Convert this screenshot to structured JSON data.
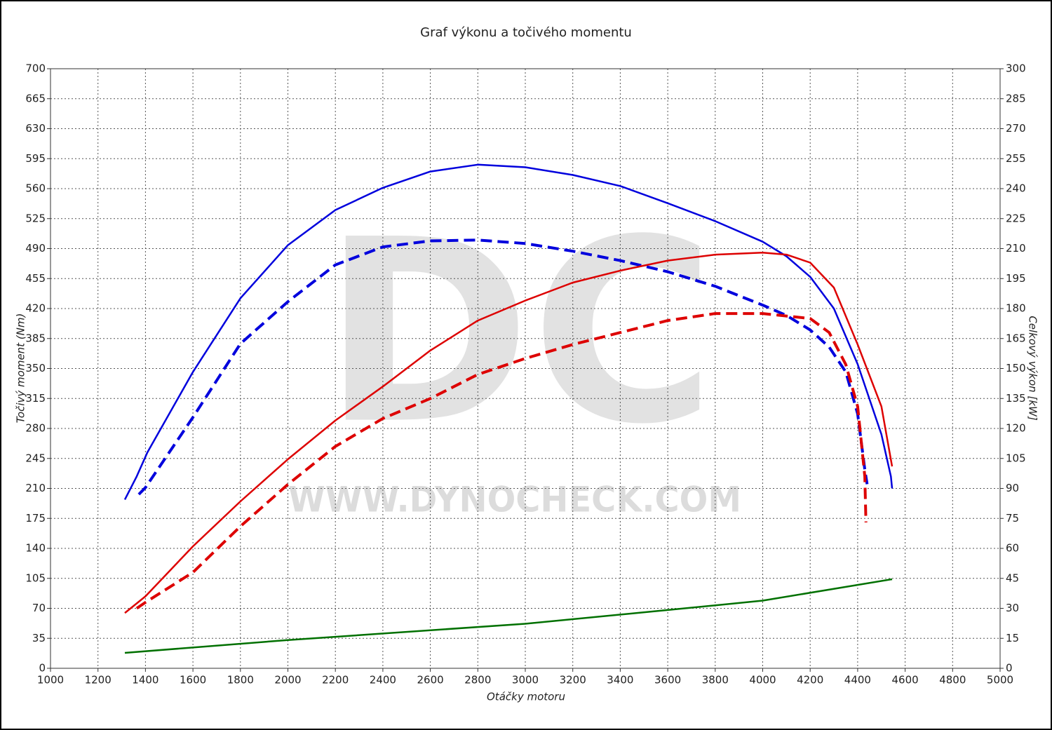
{
  "chart_data": {
    "type": "line",
    "title": "Graf výkonu a točivého momentu",
    "watermark": "DC",
    "watermark_url": "WWW.DYNOCHECK.COM",
    "x_label": "Otáčky motoru",
    "y_label": "Točivý moment (Nm)",
    "y2_label": "Celkový výkon [kW]",
    "xlim": [
      1000,
      5000
    ],
    "xticks": [
      1000,
      1200,
      1400,
      1600,
      1800,
      2000,
      2200,
      2400,
      2600,
      2800,
      3000,
      3200,
      3400,
      3600,
      3800,
      4000,
      4200,
      4400,
      4600,
      4800,
      5000
    ],
    "ylim": [
      0,
      700
    ],
    "yticks": [
      0,
      35,
      70,
      105,
      140,
      175,
      210,
      245,
      280,
      315,
      350,
      385,
      420,
      455,
      490,
      525,
      560,
      595,
      630,
      665,
      700
    ],
    "y2lim": [
      0,
      300
    ],
    "y2ticks": [
      0,
      15,
      30,
      45,
      60,
      75,
      90,
      105,
      120,
      135,
      150,
      165,
      180,
      195,
      210,
      225,
      240,
      255,
      270,
      285,
      300
    ],
    "grid": true,
    "series": [
      {
        "color": "#0000dd",
        "style": "solid",
        "axis": "y",
        "x": [
          1313,
          1363,
          1408,
          1600,
          1800,
          2000,
          2200,
          2400,
          2600,
          2800,
          3000,
          3200,
          3400,
          3600,
          3800,
          4000,
          4100,
          4200,
          4300,
          4400,
          4500,
          4540,
          4545
        ],
        "values": [
          197,
          224,
          252,
          346,
          432,
          494,
          535,
          561,
          580,
          588,
          585,
          576,
          563,
          543,
          522,
          498,
          481,
          457,
          420,
          355,
          273,
          224,
          210
        ]
      },
      {
        "color": "#0000dd",
        "style": "dashed",
        "axis": "y",
        "x": [
          1372,
          1400,
          1600,
          1800,
          2000,
          2200,
          2400,
          2600,
          2800,
          3000,
          3200,
          3400,
          3600,
          3800,
          4000,
          4100,
          4200,
          4280,
          4350,
          4400,
          4430,
          4440
        ],
        "values": [
          203,
          211,
          293,
          379,
          428,
          471,
          492,
          499,
          500,
          496,
          487,
          476,
          463,
          446,
          424,
          412,
          395,
          375,
          346,
          297,
          232,
          215
        ]
      },
      {
        "color": "#dd0000",
        "style": "solid",
        "axis": "y2",
        "x": [
          1313,
          1400,
          1600,
          1800,
          2000,
          2200,
          2400,
          2600,
          2800,
          3000,
          3200,
          3400,
          3600,
          3800,
          4000,
          4100,
          4200,
          4300,
          4400,
          4500,
          4545
        ],
        "values": [
          27.7,
          36,
          61,
          83.5,
          104.6,
          124,
          141,
          159,
          174,
          184,
          193,
          199,
          204,
          207,
          208,
          207,
          203,
          190.5,
          162,
          131,
          101
        ]
      },
      {
        "color": "#dd0000",
        "style": "dashed",
        "axis": "y2",
        "x": [
          1363,
          1400,
          1600,
          1800,
          2000,
          2200,
          2400,
          2600,
          2800,
          3000,
          3200,
          3400,
          3600,
          3800,
          4000,
          4200,
          4280,
          4350,
          4400,
          4430,
          4435
        ],
        "values": [
          30,
          33,
          48,
          71,
          92,
          111,
          125,
          135,
          147,
          155,
          162,
          168,
          174,
          177.5,
          177.5,
          175,
          168,
          152,
          131,
          96,
          73
        ]
      },
      {
        "color": "#007000",
        "style": "solid",
        "axis": "y",
        "x": [
          1313,
          2000,
          3000,
          3600,
          4000,
          4545
        ],
        "values": [
          18,
          33,
          52,
          68,
          79,
          104
        ]
      }
    ]
  }
}
